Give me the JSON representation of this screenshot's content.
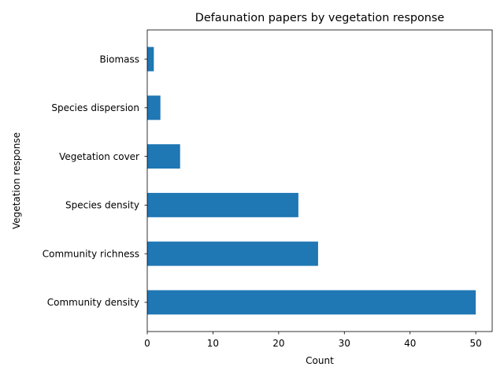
{
  "chart_data": {
    "type": "bar",
    "orientation": "horizontal",
    "title": "Defaunation papers by vegetation response",
    "xlabel": "Count",
    "ylabel": "Vegetation response",
    "categories": [
      "Biomass",
      "Species dispersion",
      "Vegetation cover",
      "Species density",
      "Community richness",
      "Community density"
    ],
    "values": [
      1,
      2,
      5,
      23,
      26,
      50
    ],
    "xlim": [
      0,
      52.5
    ],
    "xticks": [
      0,
      10,
      20,
      30,
      40,
      50
    ],
    "grid": false,
    "legend": "none",
    "bar_color": "#1f77b4"
  }
}
